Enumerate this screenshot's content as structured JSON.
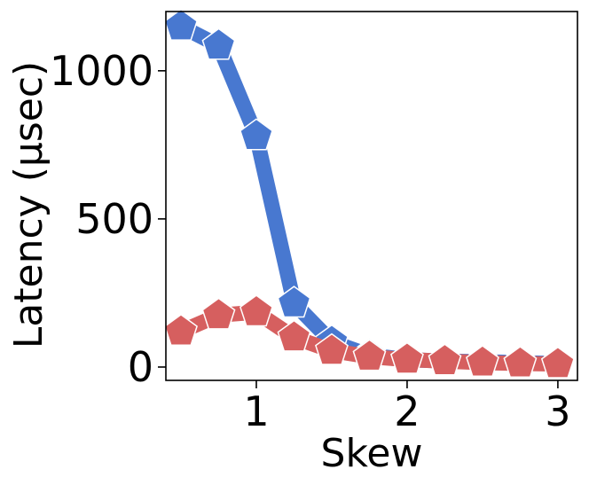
{
  "chart_data": {
    "type": "line",
    "xlabel": "Skew",
    "ylabel": "Latency (μsec)",
    "xlim": [
      0.4,
      3.13
    ],
    "ylim": [
      -45,
      1200
    ],
    "xticks": [
      1,
      2,
      3
    ],
    "yticks": [
      0,
      500,
      1000
    ],
    "grid": false,
    "legend": "none",
    "series": [
      {
        "color": "#4878d0",
        "marker": "pentagon",
        "x": [
          0.5,
          0.75,
          1.0,
          1.25,
          1.5,
          1.75,
          2.0,
          2.25,
          2.5,
          2.75,
          3.0
        ],
        "y": [
          1150,
          1085,
          780,
          215,
          85,
          40,
          25,
          20,
          18,
          15,
          12
        ]
      },
      {
        "color": "#d65f5f",
        "marker": "pentagon",
        "x": [
          0.5,
          0.75,
          1.0,
          1.25,
          1.5,
          1.75,
          2.0,
          2.25,
          2.5,
          2.75,
          3.0
        ],
        "y": [
          120,
          175,
          185,
          100,
          55,
          35,
          25,
          20,
          15,
          12,
          10
        ]
      }
    ]
  }
}
